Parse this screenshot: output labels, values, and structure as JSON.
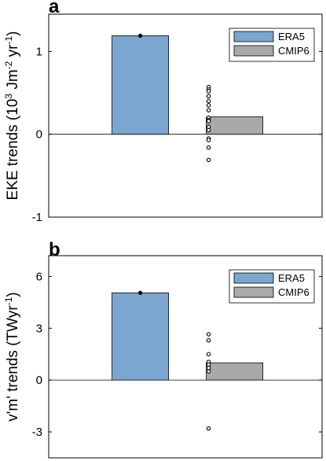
{
  "colors": {
    "era5": "#7ba6cf",
    "cmip6": "#a9a9a9",
    "axis": "#000000"
  },
  "chart_data": [
    {
      "type": "bar",
      "panel_label": "a",
      "ylabel": "EKE trends (10^3 Jm^-2 yr^-1)",
      "ylabel_parts": {
        "main": "EKE trends (10",
        "sup1": "3",
        "mid1": " Jm",
        "sup2": "-2",
        "mid2": "yr",
        "sup3": "-1",
        "end": ")"
      },
      "categories": [
        "ERA5",
        "CMIP6"
      ],
      "values": [
        1.19,
        0.21
      ],
      "ylim": [
        -1,
        1.45
      ],
      "yticks": [
        -1,
        0,
        1
      ],
      "ytick_labels": [
        "-1",
        "0",
        "1"
      ],
      "legend": {
        "placement": "top-right",
        "entries": [
          "ERA5",
          "CMIP6"
        ]
      },
      "points": {
        "ERA5": [
          1.19
        ],
        "CMIP6": [
          0.57,
          0.54,
          0.52,
          0.46,
          0.4,
          0.35,
          0.29,
          0.2,
          0.17,
          0.16,
          0.09,
          0.05,
          -0.05,
          -0.07,
          -0.16,
          -0.31
        ]
      }
    },
    {
      "type": "bar",
      "panel_label": "b",
      "ylabel": "v'm' trends (TWyr^-1)",
      "ylabel_parts": {
        "main": "v'm' trends (TWyr",
        "sup1": "-1",
        "end": ")"
      },
      "categories": [
        "ERA5",
        "CMIP6"
      ],
      "values": [
        5.05,
        1.0
      ],
      "ylim": [
        -4.5,
        7.2
      ],
      "yticks": [
        -3,
        0,
        3,
        6
      ],
      "ytick_labels": [
        "-3",
        "0",
        "3",
        "6"
      ],
      "legend": {
        "placement": "top-right",
        "entries": [
          "ERA5",
          "CMIP6"
        ]
      },
      "points": {
        "ERA5": [
          5.05
        ],
        "CMIP6": [
          2.65,
          2.3,
          1.5,
          1.05,
          0.9,
          0.7,
          0.5,
          -2.8
        ]
      }
    }
  ]
}
